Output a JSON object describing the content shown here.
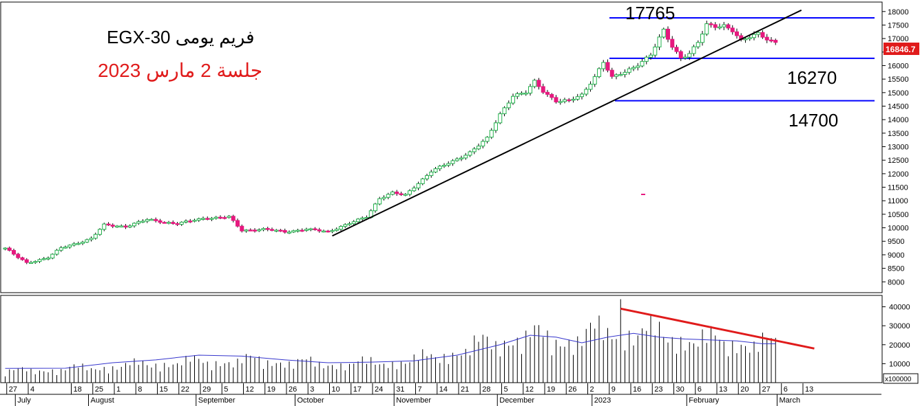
{
  "chart_data": {
    "type": "candlestick",
    "title": "EGX-30  فريم يومى",
    "subtitle": "جلسة 2 مارس 2023",
    "last_price_label": "16846.7",
    "colors": {
      "up": "#22b14c",
      "down": "#e6197f",
      "trendline": "#000000",
      "levels": "#0000ff",
      "volume_ma": "#3333cc",
      "volume_trend": "#e01b1b",
      "subtitle": "#e01b1b",
      "last_price_bg": "#e01b1b"
    },
    "price_axis": {
      "ylim": [
        7600,
        18350
      ],
      "ticks": [
        8000,
        8500,
        9000,
        9500,
        10000,
        10500,
        11000,
        11500,
        12000,
        12500,
        13000,
        13500,
        14000,
        14500,
        15000,
        15500,
        16000,
        16500,
        17000,
        17500,
        18000
      ]
    },
    "volume_axis": {
      "ylim": [
        0,
        46000
      ],
      "ticks": [
        "40000",
        "30000",
        "20000",
        "10000"
      ],
      "unit": "x100000"
    },
    "levels": [
      {
        "value": 17765,
        "label": "17765"
      },
      {
        "value": 16270,
        "label": "16270"
      },
      {
        "value": 14700,
        "label": "14700"
      }
    ],
    "x_axis": {
      "day_ticks": [
        {
          "i": 1,
          "label": "27"
        },
        {
          "i": 6,
          "label": "4"
        },
        {
          "i": 16,
          "label": "18"
        },
        {
          "i": 21,
          "label": "25"
        },
        {
          "i": 26,
          "label": "1"
        },
        {
          "i": 31,
          "label": "8"
        },
        {
          "i": 36,
          "label": "15"
        },
        {
          "i": 41,
          "label": "22"
        },
        {
          "i": 46,
          "label": "29"
        },
        {
          "i": 51,
          "label": "5"
        },
        {
          "i": 56,
          "label": "12"
        },
        {
          "i": 61,
          "label": "19"
        },
        {
          "i": 66,
          "label": "26"
        },
        {
          "i": 71,
          "label": "3"
        },
        {
          "i": 76,
          "label": "10"
        },
        {
          "i": 81,
          "label": "17"
        },
        {
          "i": 86,
          "label": "24"
        },
        {
          "i": 91,
          "label": "31"
        },
        {
          "i": 96,
          "label": "7"
        },
        {
          "i": 101,
          "label": "14"
        },
        {
          "i": 106,
          "label": "21"
        },
        {
          "i": 111,
          "label": "28"
        },
        {
          "i": 116,
          "label": "5"
        },
        {
          "i": 121,
          "label": "12"
        },
        {
          "i": 126,
          "label": "19"
        },
        {
          "i": 131,
          "label": "26"
        },
        {
          "i": 136,
          "label": "2"
        },
        {
          "i": 141,
          "label": "9"
        },
        {
          "i": 146,
          "label": "16"
        },
        {
          "i": 151,
          "label": "23"
        },
        {
          "i": 156,
          "label": "30"
        },
        {
          "i": 161,
          "label": "6"
        },
        {
          "i": 166,
          "label": "13"
        },
        {
          "i": 171,
          "label": "20"
        },
        {
          "i": 176,
          "label": "27"
        },
        {
          "i": 181,
          "label": "6"
        },
        {
          "i": 186,
          "label": "13"
        }
      ],
      "month_labels": [
        {
          "i": 3,
          "label": "July"
        },
        {
          "i": 20,
          "label": "August"
        },
        {
          "i": 45,
          "label": "September"
        },
        {
          "i": 68,
          "label": "October"
        },
        {
          "i": 91,
          "label": "November"
        },
        {
          "i": 115,
          "label": "December"
        },
        {
          "i": 137,
          "label": "2023"
        },
        {
          "i": 159,
          "label": "February"
        },
        {
          "i": 180,
          "label": "March"
        }
      ]
    },
    "trendlines": [
      {
        "name": "support",
        "from": [
          76,
          9700
        ],
        "to": [
          185,
          18050
        ]
      },
      {
        "name": "volume",
        "from": [
          143,
          39000
        ],
        "to": [
          188,
          18000
        ]
      }
    ],
    "checkpoints": [
      [
        0,
        9250
      ],
      [
        3,
        8900
      ],
      [
        5,
        8700
      ],
      [
        10,
        8900
      ],
      [
        13,
        9250
      ],
      [
        20,
        9600
      ],
      [
        23,
        10100
      ],
      [
        28,
        10050
      ],
      [
        33,
        10300
      ],
      [
        40,
        10150
      ],
      [
        46,
        10350
      ],
      [
        52,
        10400
      ],
      [
        55,
        9900
      ],
      [
        60,
        9950
      ],
      [
        65,
        9850
      ],
      [
        70,
        9950
      ],
      [
        75,
        9850
      ],
      [
        78,
        10050
      ],
      [
        84,
        10400
      ],
      [
        87,
        11100
      ],
      [
        90,
        11300
      ],
      [
        93,
        11200
      ],
      [
        96,
        11650
      ],
      [
        99,
        12100
      ],
      [
        104,
        12450
      ],
      [
        108,
        12800
      ],
      [
        112,
        13300
      ],
      [
        115,
        14200
      ],
      [
        118,
        14900
      ],
      [
        121,
        15000
      ],
      [
        123,
        15400
      ],
      [
        125,
        15050
      ],
      [
        128,
        14700
      ],
      [
        131,
        14700
      ],
      [
        134,
        14900
      ],
      [
        137,
        15600
      ],
      [
        139,
        16150
      ],
      [
        141,
        15550
      ],
      [
        144,
        15750
      ],
      [
        147,
        16050
      ],
      [
        150,
        16400
      ],
      [
        153,
        17300
      ],
      [
        155,
        16700
      ],
      [
        157,
        16300
      ],
      [
        159,
        16450
      ],
      [
        161,
        16850
      ],
      [
        163,
        17500
      ],
      [
        165,
        17450
      ],
      [
        167,
        17500
      ],
      [
        169,
        17300
      ],
      [
        171,
        16900
      ],
      [
        173,
        17050
      ],
      [
        175,
        17200
      ],
      [
        177,
        17000
      ],
      [
        179,
        16850
      ]
    ],
    "volume_profile": [
      [
        0,
        6000
      ],
      [
        20,
        8000
      ],
      [
        40,
        11000
      ],
      [
        60,
        12000
      ],
      [
        75,
        10000
      ],
      [
        90,
        11000
      ],
      [
        100,
        14000
      ],
      [
        110,
        20000
      ],
      [
        120,
        25000
      ],
      [
        130,
        23000
      ],
      [
        140,
        28000
      ],
      [
        150,
        27000
      ],
      [
        160,
        23000
      ],
      [
        170,
        22000
      ],
      [
        179,
        20000
      ]
    ],
    "volume_ma_points": [
      [
        0,
        7500
      ],
      [
        14,
        7600
      ],
      [
        25,
        10500
      ],
      [
        35,
        12000
      ],
      [
        45,
        14500
      ],
      [
        55,
        14000
      ],
      [
        65,
        12000
      ],
      [
        75,
        10500
      ],
      [
        85,
        10800
      ],
      [
        95,
        11500
      ],
      [
        105,
        14500
      ],
      [
        115,
        20000
      ],
      [
        122,
        25000
      ],
      [
        128,
        24000
      ],
      [
        134,
        21000
      ],
      [
        140,
        24000
      ],
      [
        146,
        26000
      ],
      [
        152,
        24000
      ],
      [
        158,
        23000
      ],
      [
        164,
        22500
      ],
      [
        170,
        22000
      ],
      [
        176,
        20500
      ],
      [
        179,
        20500
      ]
    ]
  }
}
